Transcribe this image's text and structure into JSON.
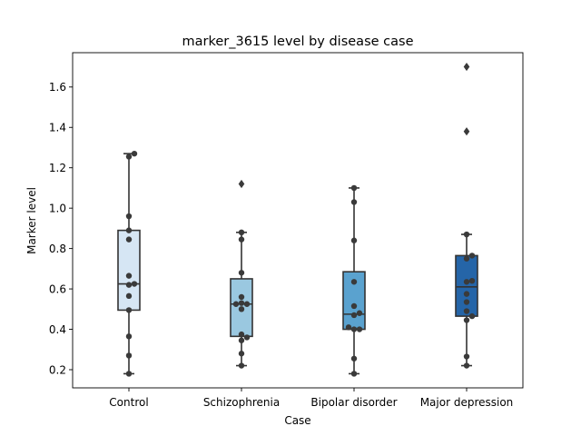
{
  "chart_data": {
    "type": "box",
    "title": "marker_3615 level by disease case",
    "xlabel": "Case",
    "ylabel": "Marker level",
    "categories": [
      "Control",
      "Schizophrenia",
      "Bipolar disorder",
      "Major depression"
    ],
    "ylim": [
      0.11,
      1.77
    ],
    "yticks": [
      0.2,
      0.4,
      0.6,
      0.8,
      1.0,
      1.2,
      1.4,
      1.6
    ],
    "ytick_labels": [
      "0.2",
      "0.4",
      "0.6",
      "0.8",
      "1.0",
      "1.2",
      "1.4",
      "1.6"
    ],
    "grid": false,
    "colors": {
      "boxes": [
        "#d6e6f4",
        "#9ac8e0",
        "#5aa2cf",
        "#2565a8"
      ],
      "edge": "#333333",
      "points": "#3a3a3a",
      "outliers": "#3a3a3a"
    },
    "groups": [
      {
        "name": "Control",
        "whisker_low": 0.18,
        "q1": 0.495,
        "median": 0.625,
        "q3": 0.89,
        "whisker_high": 1.27,
        "outliers": [],
        "points": [
          0.18,
          0.27,
          0.365,
          0.495,
          0.565,
          0.62,
          0.625,
          0.665,
          0.845,
          0.89,
          0.96,
          1.255,
          1.27
        ]
      },
      {
        "name": "Schizophrenia",
        "whisker_low": 0.22,
        "q1": 0.365,
        "median": 0.525,
        "q3": 0.65,
        "whisker_high": 0.88,
        "outliers": [
          1.12
        ],
        "points": [
          0.22,
          0.28,
          0.345,
          0.36,
          0.375,
          0.5,
          0.525,
          0.525,
          0.53,
          0.56,
          0.68,
          0.845,
          0.88
        ]
      },
      {
        "name": "Bipolar disorder",
        "whisker_low": 0.18,
        "q1": 0.4,
        "median": 0.475,
        "q3": 0.685,
        "whisker_high": 1.1,
        "outliers": [],
        "points": [
          0.18,
          0.255,
          0.4,
          0.4,
          0.41,
          0.47,
          0.48,
          0.515,
          0.635,
          0.84,
          1.03,
          1.1
        ]
      },
      {
        "name": "Major depression",
        "whisker_low": 0.22,
        "q1": 0.465,
        "median": 0.61,
        "q3": 0.765,
        "whisker_high": 0.87,
        "outliers": [
          1.38,
          1.7
        ],
        "points": [
          0.22,
          0.265,
          0.445,
          0.465,
          0.49,
          0.535,
          0.575,
          0.635,
          0.64,
          0.75,
          0.765,
          0.87
        ]
      }
    ]
  }
}
